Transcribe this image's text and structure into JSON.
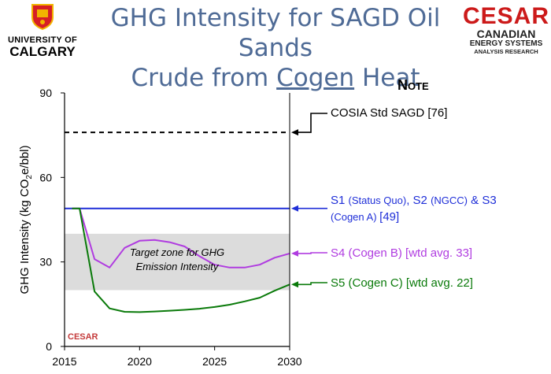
{
  "header": {
    "title_line1": "GHG Intensity for SAGD Oil Sands",
    "title_line2_a": "Crude from ",
    "title_line2_b": "Cogen",
    "title_line2_c": " Heat",
    "left_logo": {
      "line1": "UNIVERSITY OF",
      "line2": "CALGARY",
      "icon": "university-shield-icon"
    },
    "right_logo": {
      "wordmark": "CESAR",
      "line1": "CANADIAN",
      "line2": "ENERGY SYSTEMS",
      "line3": "ANALYSIS RESEARCH",
      "icon": "maple-leaf-icon"
    }
  },
  "note": "Note",
  "watermark": "CESAR",
  "colors": {
    "cosia": "#000000",
    "s1": "#1f2fd8",
    "s4": "#b03ce0",
    "s5": "#0a7a0a",
    "zone": "#dcdcdc",
    "title": "#4f6b96"
  },
  "chart_data": {
    "type": "line",
    "xlim": [
      2015,
      2030
    ],
    "ylim": [
      0,
      90
    ],
    "xticks": [
      "2015",
      "2020",
      "2025",
      "2030"
    ],
    "yticks": [
      "0",
      "30",
      "60",
      "90"
    ],
    "ylabel_pre": "GHG Intensity (kg CO",
    "ylabel_sub": "2",
    "ylabel_post": "e/bbl)",
    "grid": false,
    "target_zone": {
      "y0": 20,
      "y1": 40,
      "label_line1": "Target zone for GHG",
      "label_line2": "Emission Intensity"
    },
    "series": [
      {
        "key": "cosia",
        "style": "dashed",
        "x": [
          2015,
          2030
        ],
        "y": [
          76,
          76
        ]
      },
      {
        "key": "s1",
        "style": "solid",
        "x": [
          2015,
          2030
        ],
        "y": [
          49,
          49
        ]
      },
      {
        "key": "s4",
        "style": "solid",
        "x": [
          2015.5,
          2016,
          2017,
          2018,
          2019,
          2020,
          2021,
          2022,
          2023,
          2024,
          2025,
          2026,
          2027,
          2028,
          2029,
          2030
        ],
        "y": [
          49,
          49,
          31,
          28,
          35,
          37.5,
          37.8,
          37,
          35.5,
          32,
          29,
          28,
          28,
          29,
          31.5,
          33
        ]
      },
      {
        "key": "s5",
        "style": "solid",
        "x": [
          2015.5,
          2016,
          2017,
          2018,
          2019,
          2020,
          2021,
          2022,
          2023,
          2024,
          2025,
          2026,
          2027,
          2028,
          2029,
          2030
        ],
        "y": [
          49,
          49,
          19.5,
          13.5,
          12.3,
          12.2,
          12.4,
          12.7,
          13,
          13.4,
          14,
          14.8,
          16,
          17.3,
          19.8,
          22
        ]
      }
    ],
    "annotations": {
      "cosia": {
        "text": "COSIA Std SAGD [76]"
      },
      "s1": {
        "a": "S1 ",
        "b": "(Status Quo)",
        "c": ", S2 ",
        "d": "(NGCC)",
        "e": " & S3",
        "f": "(Cogen A) ",
        "g": "[49]"
      },
      "s4": {
        "text": "S4 (Cogen B) [wtd avg. 33]"
      },
      "s5": {
        "text": "S5 (Cogen C) [wtd avg. 22]"
      }
    }
  }
}
